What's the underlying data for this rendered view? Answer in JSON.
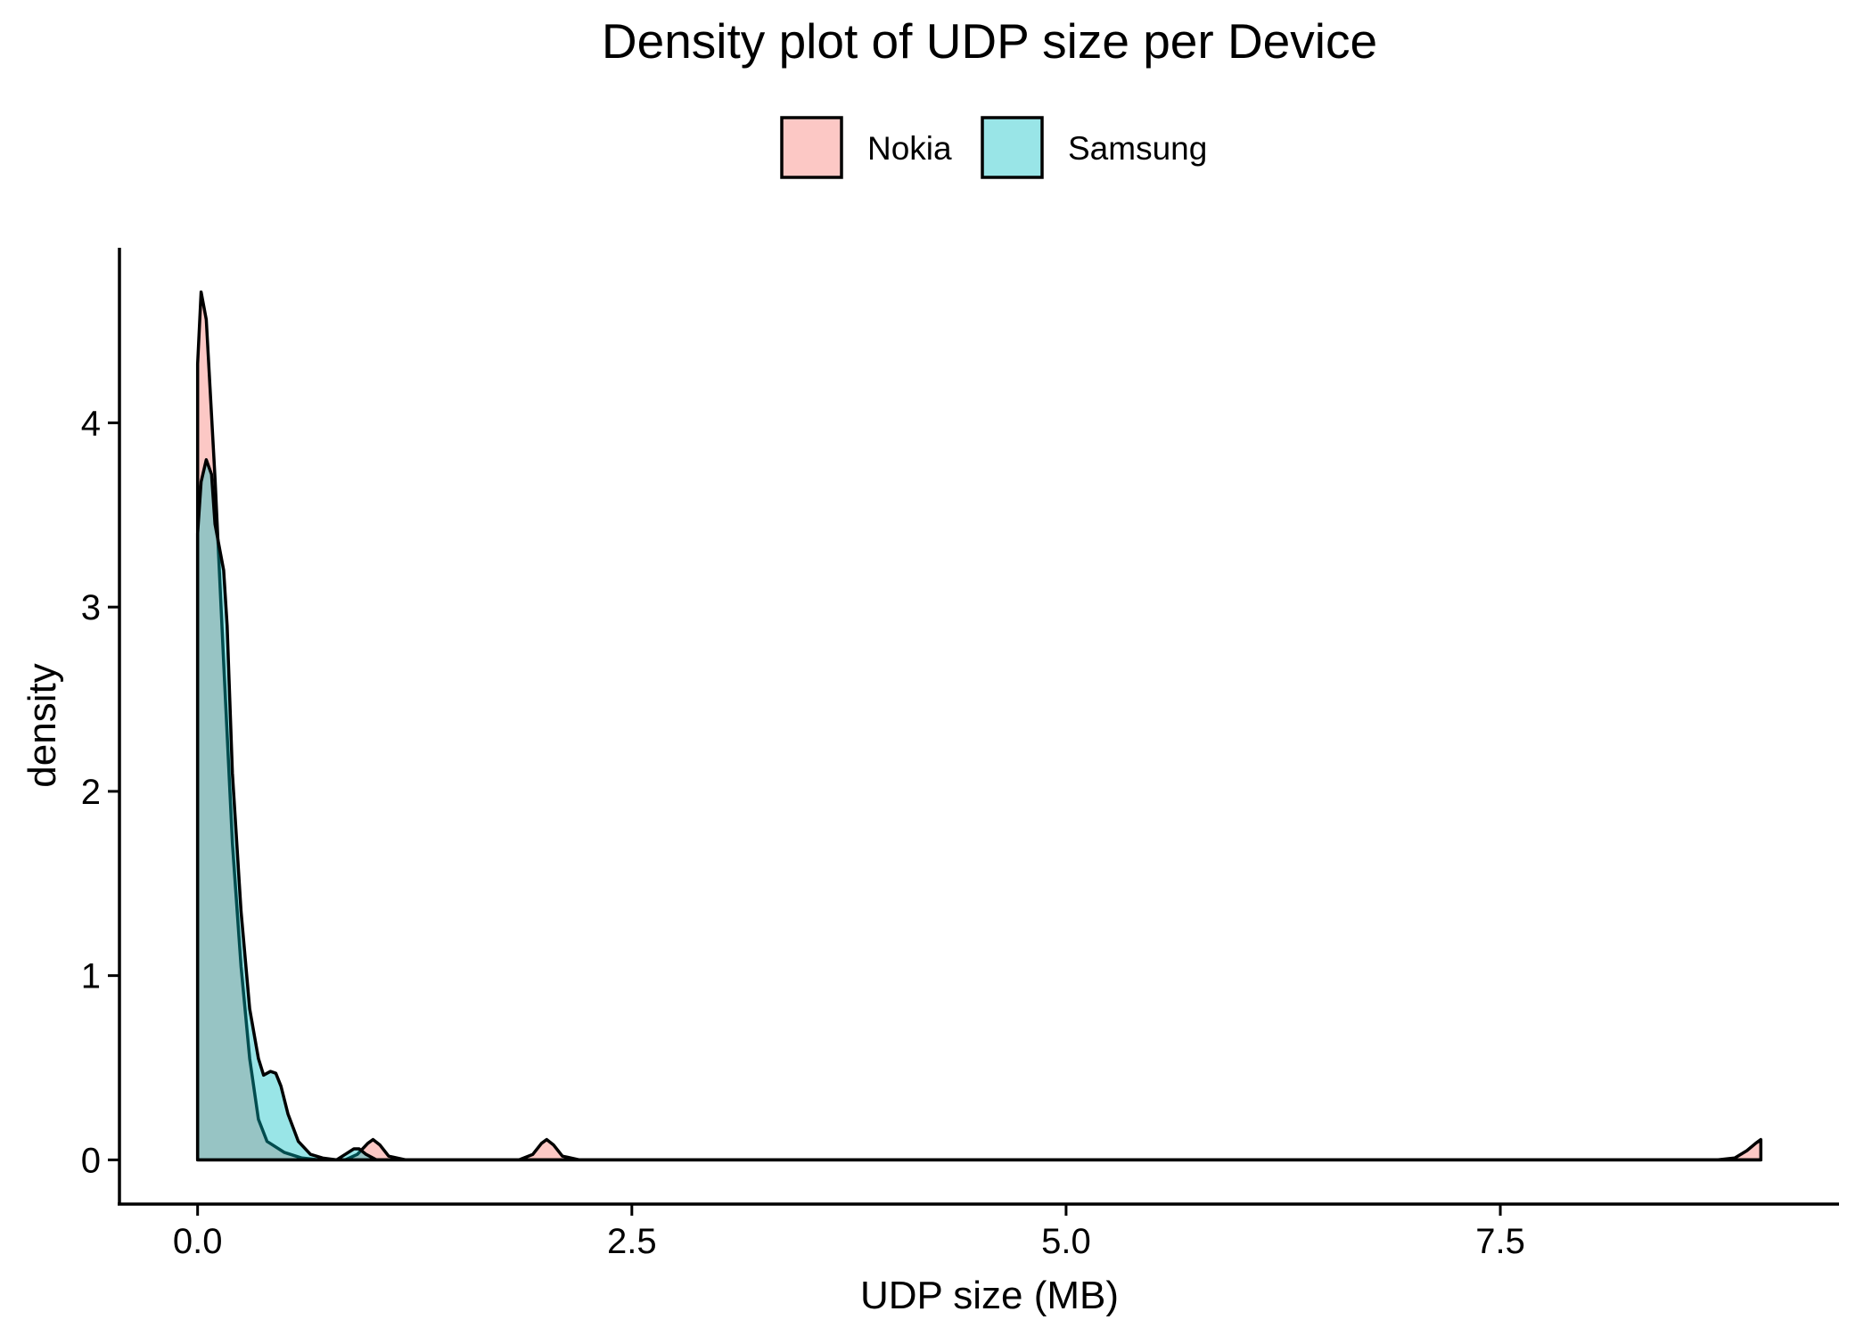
{
  "chart_data": {
    "type": "area",
    "subtype": "density",
    "title": "Density plot of UDP size per Device",
    "xlabel": "UDP size (MB)",
    "ylabel": "density",
    "xlim": [
      -0.45,
      9.45
    ],
    "ylim": [
      -0.24,
      4.95
    ],
    "x_ticks": [
      0,
      2.5,
      5,
      7.5
    ],
    "x_tick_labels": [
      "0.0",
      "2.5",
      "5.0",
      "7.5"
    ],
    "y_ticks": [
      0,
      1,
      2,
      3,
      4
    ],
    "y_tick_labels": [
      "0",
      "1",
      "2",
      "3",
      "4"
    ],
    "grid": false,
    "legend_position": "top",
    "series": [
      {
        "name": "Nokia",
        "color": "#F8766D",
        "alpha": 0.4,
        "points": [
          [
            0.0,
            4.32
          ],
          [
            0.02,
            4.71
          ],
          [
            0.05,
            4.56
          ],
          [
            0.1,
            3.7
          ],
          [
            0.15,
            2.7
          ],
          [
            0.2,
            1.72
          ],
          [
            0.25,
            1.05
          ],
          [
            0.3,
            0.55
          ],
          [
            0.35,
            0.22
          ],
          [
            0.4,
            0.1
          ],
          [
            0.5,
            0.04
          ],
          [
            0.6,
            0.01
          ],
          [
            0.7,
            0.0
          ],
          [
            0.85,
            0.0
          ],
          [
            0.92,
            0.03
          ],
          [
            0.98,
            0.09
          ],
          [
            1.01,
            0.11
          ],
          [
            1.05,
            0.08
          ],
          [
            1.1,
            0.02
          ],
          [
            1.2,
            0.0
          ],
          [
            1.85,
            0.0
          ],
          [
            1.93,
            0.03
          ],
          [
            1.98,
            0.09
          ],
          [
            2.01,
            0.11
          ],
          [
            2.05,
            0.08
          ],
          [
            2.1,
            0.02
          ],
          [
            2.2,
            0.0
          ],
          [
            8.75,
            0.0
          ],
          [
            8.85,
            0.01
          ],
          [
            8.92,
            0.05
          ],
          [
            8.97,
            0.09
          ],
          [
            9.0,
            0.11
          ]
        ]
      },
      {
        "name": "Samsung",
        "color": "#00BFC4",
        "alpha": 0.4,
        "points": [
          [
            0.0,
            3.4
          ],
          [
            0.02,
            3.68
          ],
          [
            0.05,
            3.8
          ],
          [
            0.08,
            3.72
          ],
          [
            0.1,
            3.45
          ],
          [
            0.13,
            3.3
          ],
          [
            0.15,
            3.2
          ],
          [
            0.17,
            2.9
          ],
          [
            0.2,
            2.1
          ],
          [
            0.25,
            1.35
          ],
          [
            0.3,
            0.82
          ],
          [
            0.35,
            0.55
          ],
          [
            0.38,
            0.46
          ],
          [
            0.42,
            0.48
          ],
          [
            0.45,
            0.47
          ],
          [
            0.48,
            0.4
          ],
          [
            0.52,
            0.25
          ],
          [
            0.58,
            0.1
          ],
          [
            0.65,
            0.03
          ],
          [
            0.72,
            0.01
          ],
          [
            0.8,
            0.0
          ],
          [
            0.85,
            0.03
          ],
          [
            0.9,
            0.06
          ],
          [
            0.93,
            0.06
          ],
          [
            0.97,
            0.03
          ],
          [
            1.03,
            0.0
          ],
          [
            9.0,
            0.0
          ]
        ]
      }
    ]
  }
}
